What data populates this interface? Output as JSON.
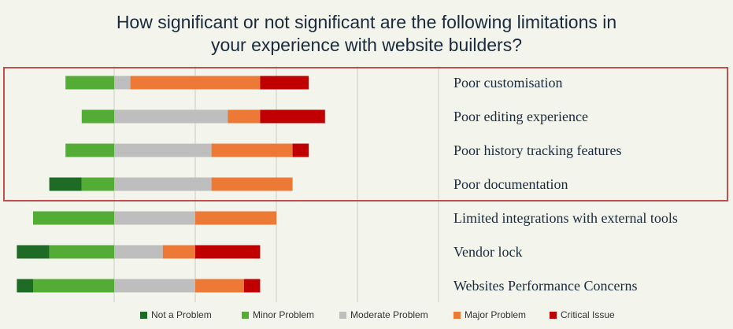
{
  "title": [
    "How significant or not significant are the following limitations in",
    "your experience with website builders?"
  ],
  "colors": {
    "background": "#f3f5ec",
    "grid": "#c9cdc2",
    "highlight_box": "#c0504d"
  },
  "highlight": {
    "categories": [
      "Poor customisation",
      "Poor editing experience",
      "Poor history tracking features",
      "Poor documentation"
    ]
  },
  "chart_data": {
    "type": "bar",
    "orientation": "horizontal",
    "stacked": true,
    "diverging": true,
    "title": "How significant or not significant are the following limitations in your experience with website builders?",
    "categories": [
      "Poor customisation",
      "Poor editing experience",
      "Poor history tracking features",
      "Poor documentation",
      "Limited integrations with external tools",
      "Vendor lock",
      "Websites Performance Concerns"
    ],
    "series": [
      {
        "name": "Not a Problem",
        "color": "#1e6b25",
        "values": [
          0,
          0,
          0,
          2,
          0,
          2,
          1
        ]
      },
      {
        "name": "Minor Problem",
        "color": "#53ac35",
        "values": [
          3,
          2,
          3,
          2,
          5,
          4,
          5
        ]
      },
      {
        "name": "Moderate Problem",
        "color": "#bebebe",
        "values": [
          1,
          7,
          6,
          6,
          5,
          3,
          5
        ]
      },
      {
        "name": "Major Problem",
        "color": "#ed7937",
        "values": [
          8,
          2,
          5,
          5,
          5,
          2,
          3
        ]
      },
      {
        "name": "Critical Issue",
        "color": "#c00000",
        "values": [
          3,
          4,
          1,
          0,
          0,
          4,
          1
        ]
      }
    ],
    "xlim": [
      -5,
      20
    ],
    "grid": true,
    "legend_position": "bottom"
  }
}
